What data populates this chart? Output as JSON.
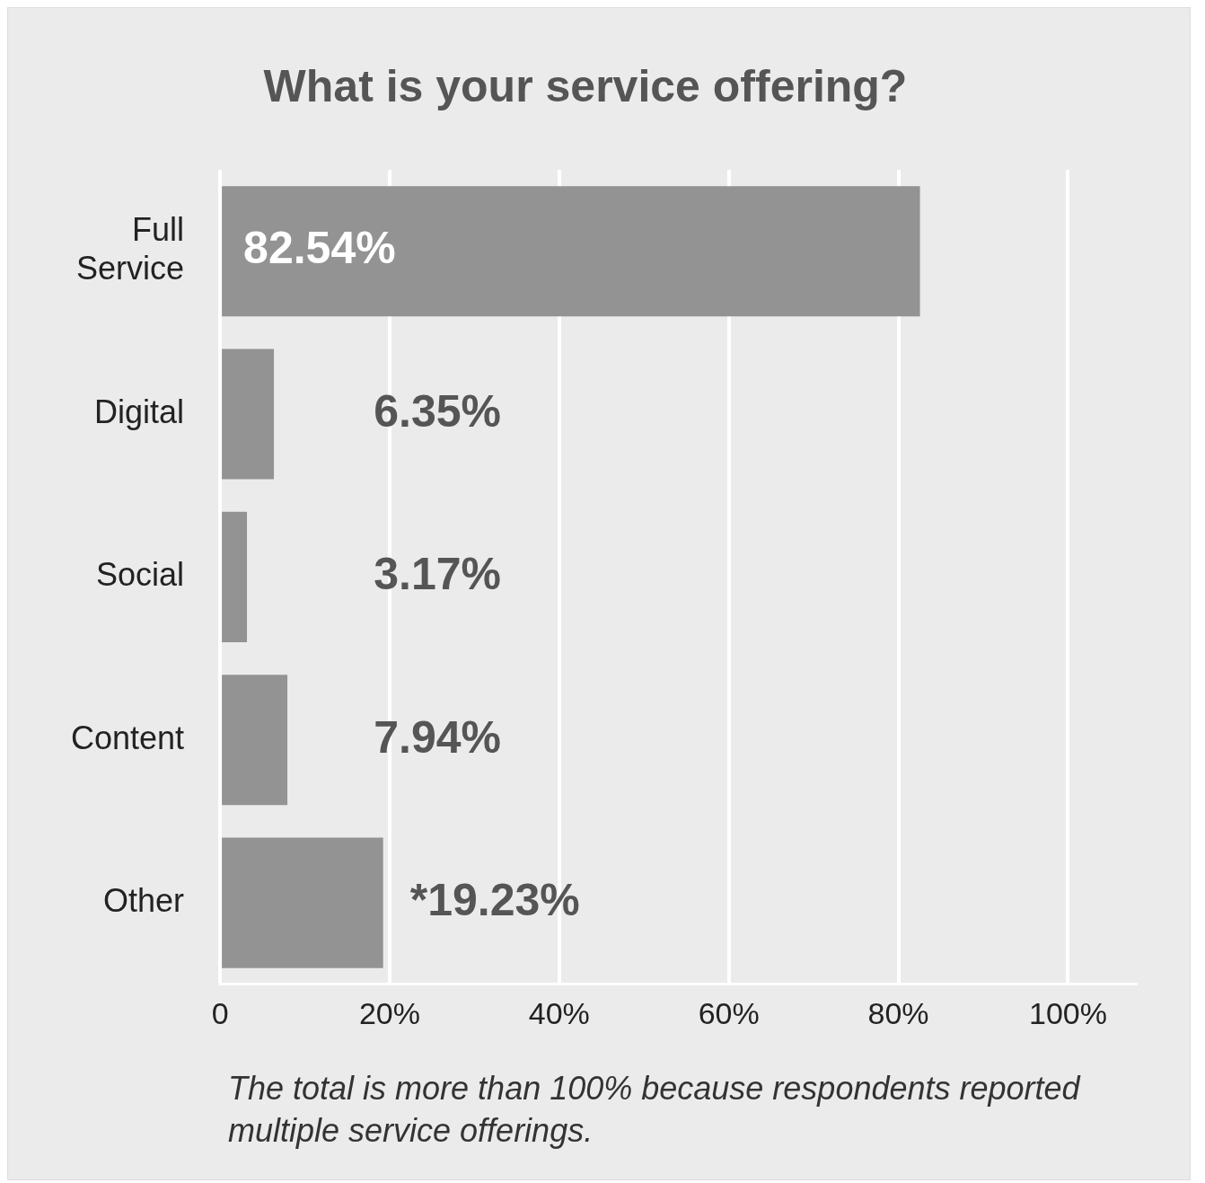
{
  "chart_data": {
    "type": "bar",
    "orientation": "horizontal",
    "title": "What is your service offering?",
    "categories": [
      "Full Service",
      "Digital",
      "Social",
      "Content",
      "Other"
    ],
    "values": [
      82.54,
      6.35,
      3.17,
      7.94,
      19.23
    ],
    "value_labels": [
      "82.54%",
      "6.35%",
      "3.17%",
      "7.94%",
      "*19.23%"
    ],
    "color": "#939393",
    "xlim": [
      0,
      108
    ],
    "xticks": [
      0,
      {
        "value": 20,
        "label": "20%"
      },
      {
        "value": 40,
        "label": "40%"
      },
      {
        "value": 60,
        "label": "60%"
      },
      {
        "value": 80,
        "label": "80%"
      },
      {
        "value": 100,
        "label": "100%"
      }
    ],
    "grid": "x",
    "annotations": [
      "The total is more than 100% because respondents reported multiple service offerings."
    ]
  }
}
